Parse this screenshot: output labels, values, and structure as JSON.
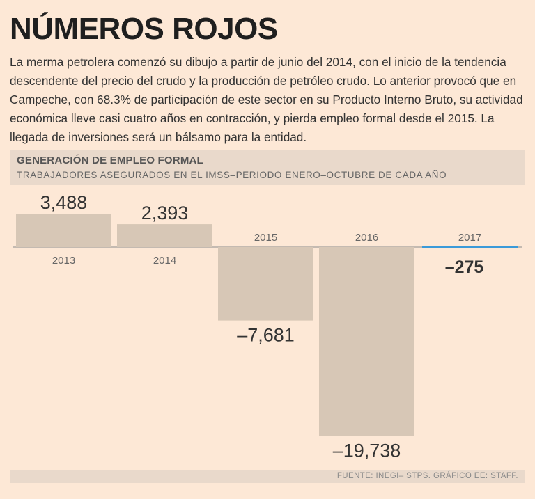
{
  "title": "NÚMEROS ROJOS",
  "intro": "La merma petrolera comenzó su dibujo a partir de junio del 2014, con el inicio de la tendencia descendente del precio del crudo y la producción de petróleo crudo. Lo anterior provocó que en Campeche, con 68.3% de participación de este sector en su Producto Interno Bruto, su actividad económica lleve casi cuatro años en contracción, y pierda empleo formal desde el 2015. La llegada de inversiones será un bálsamo para la entidad.",
  "chart_header": {
    "title": "GENERACIÓN DE EMPLEO FORMAL",
    "subtitle": "TRABAJADORES ASEGURADOS EN EL IMSS–PERIODO ENERO–OCTUBRE DE CADA AÑO"
  },
  "chart_data": {
    "type": "bar",
    "title": "GENERACIÓN DE EMPLEO FORMAL",
    "subtitle": "TRABAJADORES ASEGURADOS EN EL IMSS–PERIODO ENERO–OCTUBRE DE CADA AÑO",
    "categories": [
      "2013",
      "2014",
      "2015",
      "2016",
      "2017"
    ],
    "values": [
      3488,
      2393,
      -7681,
      -19738,
      -275
    ],
    "value_labels": [
      "3,488",
      "2,393",
      "–7,681",
      "–19,738",
      "–275"
    ],
    "highlight_index": 4,
    "ylim": [
      -19738,
      3488
    ],
    "colors": {
      "bar": "#d7c7b6",
      "highlight": "#3a9ad9",
      "axis": "#8c8c8c",
      "text": "#333333",
      "year": "#666666"
    }
  },
  "source": "FUENTE: INEGI– STPS. GRÁFICO EE: STAFF."
}
